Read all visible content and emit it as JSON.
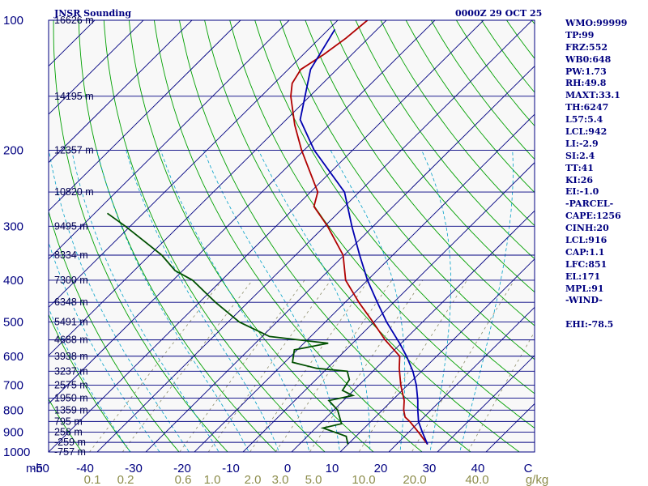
{
  "header": {
    "title": "JNSR Sounding",
    "datetime": "0000Z 29 OCT 25"
  },
  "indices": [
    "WMO:99999",
    "TP:99",
    "FRZ:552",
    "WB0:648",
    "PW:1.73",
    "RH:49.8",
    "MAXT:33.1",
    "TH:6247",
    "L57:5.4",
    "LCL:942",
    "LI:-2.9",
    "SI:2.4",
    "TT:41",
    "KI:26",
    "EI:-1.0",
    "-PARCEL-",
    "CAPE:1256",
    "CINH:20",
    "LCL:916",
    "CAP:1.1",
    "LFC:851",
    "EL:171",
    "MPL:91",
    "-WIND-",
    "",
    "EHI:-78.5"
  ],
  "colors": {
    "background": "#ffffff",
    "plot_bg": "#f8f8f8",
    "isobar": "#000080",
    "isotherm": "#000080",
    "dry_adiabat": "#00a000",
    "moist_adiabat": "#00a0c8",
    "mixing_ratio": "#8c8c6a",
    "temperature": "#b00000",
    "dewpoint": "#005000",
    "parcel": "#0000b0",
    "axis_text": "#000080",
    "mixing_text": "#8c8c4a"
  },
  "chart_data": {
    "type": "skew-t",
    "title": "JNSR Sounding",
    "subtitle": "0000Z 29 OCT 25",
    "pressure_axis_label": "mb",
    "pressure_ticks": [
      100,
      200,
      300,
      400,
      500,
      600,
      700,
      800,
      900,
      1000
    ],
    "pressure_range": [
      100,
      1000
    ],
    "temperature_ticks": [
      -50,
      -40,
      -30,
      -20,
      -10,
      0,
      10,
      20,
      30,
      40,
      50
    ],
    "temperature_tick_labels": [
      "-50",
      "-40",
      "-30",
      "-20",
      "-10",
      "0",
      "10",
      "20",
      "30",
      "40",
      "C"
    ],
    "mixing_ratio_label": "g/kg",
    "mixing_ratio_ticks": [
      {
        "label": "0.1",
        "w": 0.1
      },
      {
        "label": "0.2",
        "w": 0.2
      },
      {
        "label": "0.6",
        "w": 0.6
      },
      {
        "label": "1.0",
        "w": 1.0
      },
      {
        "label": "2.0",
        "w": 2.0
      },
      {
        "label": "3.0",
        "w": 3.0
      },
      {
        "label": "5.0",
        "w": 5.0
      },
      {
        "label": "10.0",
        "w": 10.0
      },
      {
        "label": "20.0",
        "w": 20.0
      },
      {
        "label": "40.0",
        "w": 40.0
      }
    ],
    "height_levels": [
      {
        "p": 100,
        "label": "16626 m"
      },
      {
        "p": 150,
        "label": "14195 m"
      },
      {
        "p": 200,
        "label": "12357 m"
      },
      {
        "p": 250,
        "label": "10820 m"
      },
      {
        "p": 300,
        "label": "9495 m"
      },
      {
        "p": 350,
        "label": "8334 m"
      },
      {
        "p": 400,
        "label": "7300 m"
      },
      {
        "p": 450,
        "label": "6348 m"
      },
      {
        "p": 500,
        "label": "5491 m"
      },
      {
        "p": 550,
        "label": "4688 m"
      },
      {
        "p": 600,
        "label": "3938 m"
      },
      {
        "p": 650,
        "label": "3237 m"
      },
      {
        "p": 700,
        "label": "2575 m"
      },
      {
        "p": 750,
        "label": "1950 m"
      },
      {
        "p": 800,
        "label": "1359 m"
      },
      {
        "p": 850,
        "label": "795 m"
      },
      {
        "p": 900,
        "label": "256 m"
      },
      {
        "p": 950,
        "label": "-259 m"
      },
      {
        "p": 1000,
        "label": "-757 m"
      }
    ],
    "series": [
      {
        "name": "temperature",
        "points": [
          [
            100,
            -73.9
          ],
          [
            110,
            -74.6
          ],
          [
            120,
            -75.8
          ],
          [
            130,
            -77.4
          ],
          [
            140,
            -76.3
          ],
          [
            150,
            -73.9
          ],
          [
            175,
            -67.1
          ],
          [
            200,
            -60.5
          ],
          [
            250,
            -48.5
          ],
          [
            270,
            -46.3
          ],
          [
            300,
            -39.4
          ],
          [
            350,
            -30.2
          ],
          [
            400,
            -24.5
          ],
          [
            450,
            -17.2
          ],
          [
            500,
            -10.2
          ],
          [
            550,
            -4.0
          ],
          [
            600,
            2.4
          ],
          [
            640,
            4.8
          ],
          [
            700,
            8.6
          ],
          [
            760,
            12.5
          ],
          [
            800,
            14.4
          ],
          [
            830,
            16.1
          ],
          [
            850,
            18.0
          ],
          [
            900,
            22.0
          ],
          [
            960,
            26.4
          ]
        ]
      },
      {
        "name": "dewpoint",
        "points": [
          [
            280,
            -87.4
          ],
          [
            300,
            -81.0
          ],
          [
            350,
            -67.5
          ],
          [
            380,
            -61.6
          ],
          [
            400,
            -56.0
          ],
          [
            450,
            -46.7
          ],
          [
            500,
            -37.7
          ],
          [
            540,
            -28.5
          ],
          [
            560,
            -15.0
          ],
          [
            580,
            -20.6
          ],
          [
            620,
            -18.4
          ],
          [
            640,
            -12.2
          ],
          [
            650,
            -5.3
          ],
          [
            680,
            -3.1
          ],
          [
            720,
            -2.3
          ],
          [
            740,
            0.9
          ],
          [
            760,
            -3.0
          ],
          [
            800,
            0.8
          ],
          [
            860,
            4.4
          ],
          [
            880,
            1.5
          ],
          [
            920,
            8.0
          ],
          [
            960,
            10.0
          ]
        ]
      },
      {
        "name": "parcel",
        "points": [
          [
            105,
            -78.7
          ],
          [
            130,
            -75.4
          ],
          [
            170,
            -67.1
          ],
          [
            200,
            -57.9
          ],
          [
            250,
            -43.0
          ],
          [
            300,
            -34.4
          ],
          [
            350,
            -26.8
          ],
          [
            400,
            -20.0
          ],
          [
            450,
            -13.4
          ],
          [
            500,
            -7.4
          ],
          [
            560,
            -0.3
          ],
          [
            600,
            3.8
          ],
          [
            650,
            8.2
          ],
          [
            700,
            11.8
          ],
          [
            760,
            15.3
          ],
          [
            800,
            17.3
          ],
          [
            850,
            19.8
          ],
          [
            900,
            22.8
          ],
          [
            960,
            26.4
          ]
        ]
      }
    ]
  }
}
